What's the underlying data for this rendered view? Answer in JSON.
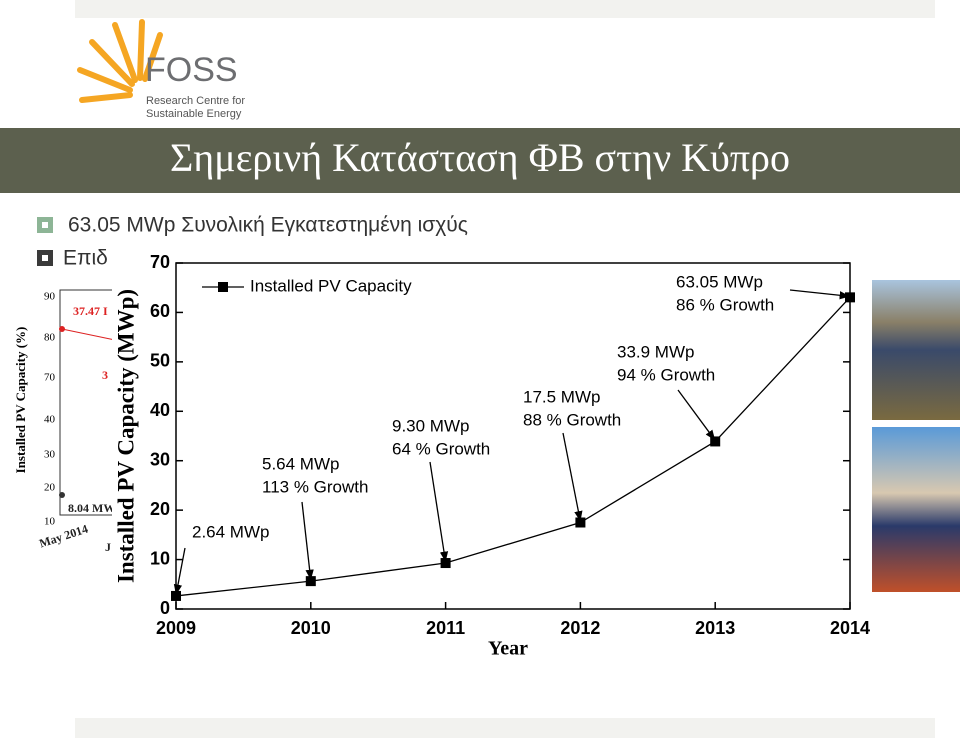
{
  "header": {
    "logo_name": "FOSS",
    "logo_subtitle": [
      "Research Centre for",
      "Sustainable Energy"
    ]
  },
  "title": "Σημερινή Κατάσταση ΦΒ στην Κύπρο",
  "bullets": [
    "63.05 MWp Συνολική Εγκατεστημένη ισχύς",
    "Επιδ"
  ],
  "background_chart": {
    "y_label": "Installed PV Capacity (%)",
    "yticks": [
      "90",
      "80",
      "70",
      "40",
      "30",
      "20",
      "10"
    ],
    "labels": [
      "37.47 I",
      "3",
      "8.04 MW",
      "May 2014",
      "J"
    ]
  },
  "chart_data": {
    "type": "line",
    "x": [
      2009,
      2010,
      2011,
      2012,
      2013,
      2014
    ],
    "series": [
      {
        "name": "Installed PV Capacity",
        "color": "#000000",
        "values": [
          2.64,
          5.64,
          9.3,
          17.5,
          33.9,
          63.05
        ]
      }
    ],
    "xlim": [
      2009,
      2014
    ],
    "ylim": [
      0,
      70
    ],
    "xticks": [
      2009,
      2010,
      2011,
      2012,
      2013,
      2014
    ],
    "yticks": [
      0,
      10,
      20,
      30,
      40,
      50,
      60,
      70
    ],
    "xlabel": "Year",
    "ylabel": "Installed PV Capacity (MWp)",
    "legend": "upper left",
    "marker": "square",
    "annotations": [
      [
        "2.64 MWp"
      ],
      [
        "5.64 MWp",
        "113 % Growth"
      ],
      [
        "9.30 MWp",
        "64 % Growth"
      ],
      [
        "17.5 MWp",
        "88 % Growth"
      ],
      [
        "33.9 MWp",
        "94 % Growth"
      ],
      [
        "63.05 MWp",
        "86 % Growth"
      ]
    ]
  }
}
